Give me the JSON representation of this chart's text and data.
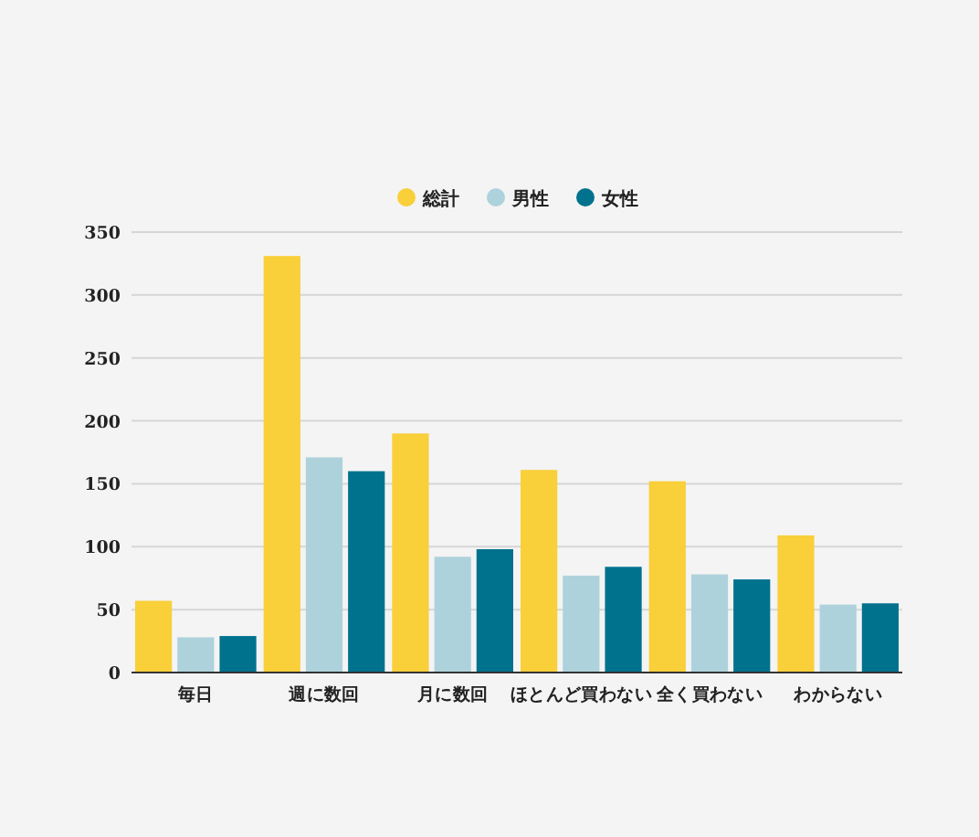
{
  "chart_data": {
    "type": "bar",
    "categories": [
      "毎日",
      "週に数回",
      "月に数回",
      "ほとんど買わない",
      "全く買わない",
      "わからない"
    ],
    "series": [
      {
        "name": "総計",
        "color": "#f9cf3a",
        "values": [
          57,
          331,
          190,
          161,
          152,
          109
        ]
      },
      {
        "name": "男性",
        "color": "#aed2dc",
        "values": [
          28,
          171,
          92,
          77,
          78,
          54
        ]
      },
      {
        "name": "女性",
        "color": "#00728e",
        "values": [
          29,
          160,
          98,
          84,
          74,
          55
        ]
      }
    ],
    "ylim": [
      0,
      350
    ],
    "yticks": [
      0,
      50,
      100,
      150,
      200,
      250,
      300,
      350
    ],
    "grid": "y",
    "legend": "top"
  }
}
